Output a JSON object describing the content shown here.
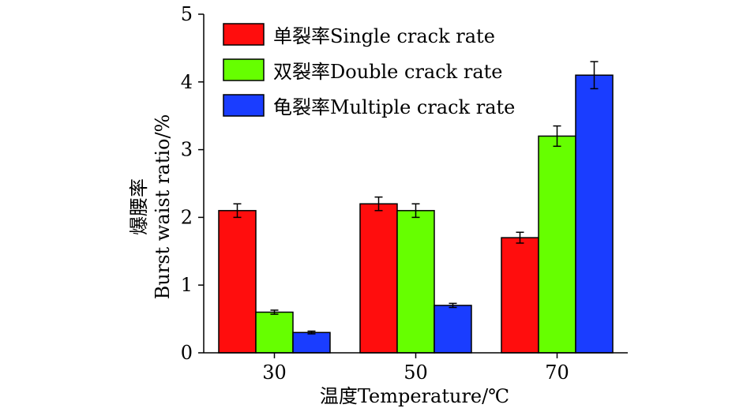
{
  "chart_data": {
    "type": "bar",
    "title": "",
    "xlabel": "温度Temperature/℃",
    "ylabel_cn": "爆腰率",
    "ylabel_en": "Burst waist ratio/%",
    "ylim": [
      0,
      5
    ],
    "yticks": [
      "0",
      "1",
      "2",
      "3",
      "4",
      "5"
    ],
    "categories": [
      "30",
      "50",
      "70"
    ],
    "legend_position": "top-left",
    "series": [
      {
        "name": "单裂率Single crack rate",
        "color": "#ff0d0d",
        "values": [
          2.1,
          2.2,
          1.7
        ],
        "errors": [
          0.1,
          0.1,
          0.08
        ]
      },
      {
        "name": "双裂率Double crack rate",
        "color": "#66ff00",
        "values": [
          0.6,
          2.1,
          3.2
        ],
        "errors": [
          0.03,
          0.1,
          0.15
        ]
      },
      {
        "name": "龟裂率Multiple crack rate",
        "color": "#1a3dff",
        "values": [
          0.3,
          0.7,
          4.1
        ],
        "errors": [
          0.02,
          0.03,
          0.2
        ]
      }
    ]
  }
}
